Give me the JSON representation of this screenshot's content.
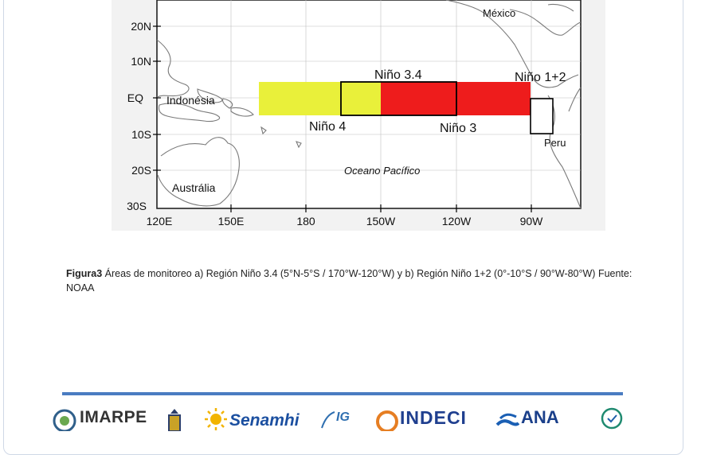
{
  "map": {
    "lat_labels": [
      "20N",
      "10N",
      "EQ",
      "10S",
      "20S",
      "30S"
    ],
    "lon_labels": [
      "120E",
      "150E",
      "180",
      "150W",
      "120W",
      "90W"
    ],
    "places": {
      "mexico": "México",
      "indonesia": "Indonésia",
      "peru": "Peru",
      "pacific": "Oceano Pacífico",
      "australia": "Austrália"
    },
    "regions": {
      "nino34": "Niño 3.4",
      "nino12": "Niño 1+2",
      "nino4": "Niño 4",
      "nino3": "Niño 3"
    },
    "colors": {
      "nino4_fill": "#e9f03a",
      "nino3_fill": "#ee1c1c",
      "nino12_fill": "#ffffff",
      "land": "#ffffff",
      "ocean": "#ffffff"
    }
  },
  "caption": {
    "label": "Figura3",
    "text": " Áreas de monitoreo a) Región Niño 3.4 (5°N-5°S / 170°W-120°W) y b) Región Niño 1+2 (0°-10°S / 90°W-80°W) Fuente: NOAA"
  },
  "footer": {
    "accent": "#4a7cc1",
    "logos": [
      {
        "text": "IMARPE",
        "icon": "imarpe-seal-icon"
      },
      {
        "text": "",
        "icon": "navy-emblem-icon"
      },
      {
        "text": "Senamhi",
        "icon": "sun-icon"
      },
      {
        "text": "IG",
        "icon": "igp-icon"
      },
      {
        "text": "INDECI",
        "icon": "indeci-icon"
      },
      {
        "text": "ANA",
        "icon": "ana-wave-icon"
      },
      {
        "text": "",
        "icon": "ministry-seal-icon"
      }
    ]
  }
}
